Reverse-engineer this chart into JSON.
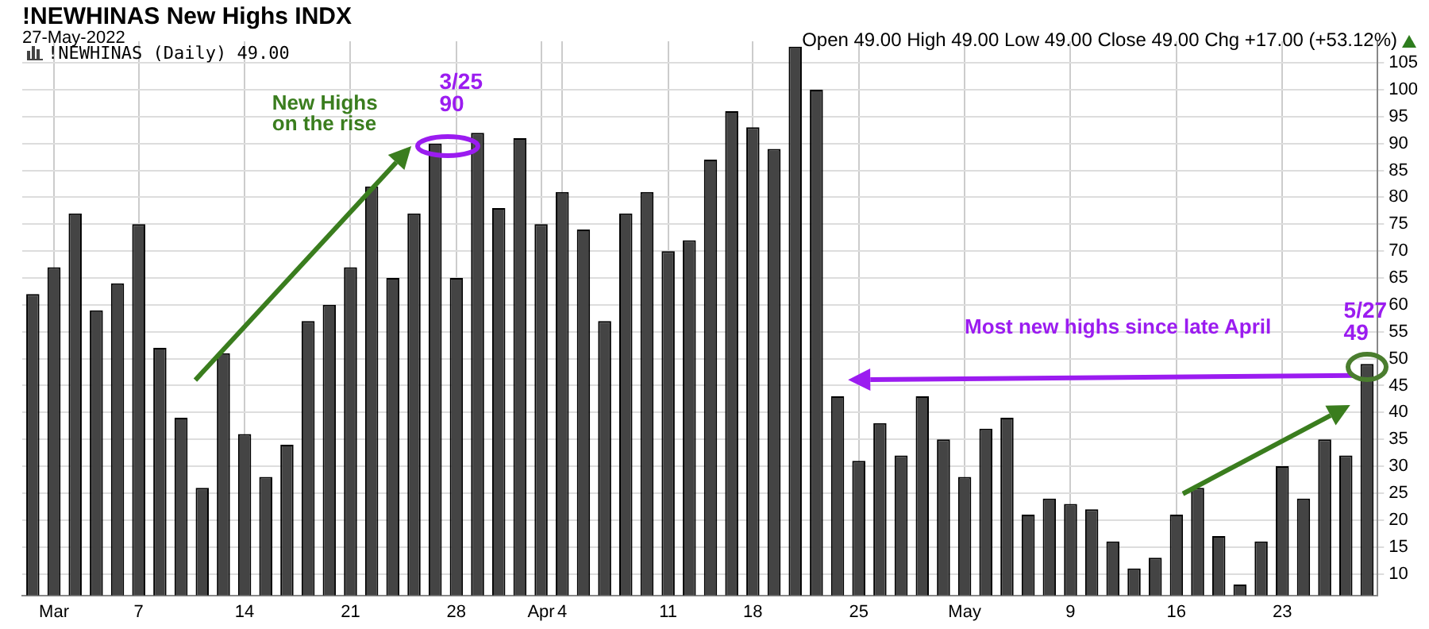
{
  "chart_data": {
    "type": "bar",
    "title": "!NEWHINAS New Highs INDX",
    "subtitle": "27-May-2022",
    "categories": [
      null,
      "Mar",
      null,
      null,
      null,
      "7",
      null,
      null,
      null,
      null,
      "14",
      null,
      null,
      null,
      null,
      "21",
      null,
      null,
      null,
      null,
      "28",
      null,
      null,
      null,
      "Apr",
      "4",
      null,
      null,
      null,
      null,
      "11",
      null,
      null,
      null,
      "18",
      null,
      null,
      null,
      null,
      "25",
      null,
      null,
      null,
      null,
      "May",
      null,
      null,
      null,
      null,
      "9",
      null,
      null,
      null,
      null,
      "16",
      null,
      null,
      null,
      null,
      "23",
      null,
      null,
      null,
      null
    ],
    "series": [
      {
        "name": "!NEWHINAS (Daily) 49.00",
        "color": "#444444",
        "values": [
          62,
          67,
          77,
          59,
          64,
          75,
          52,
          39,
          26,
          51,
          36,
          28,
          34,
          57,
          60,
          67,
          82,
          65,
          77,
          90,
          65,
          92,
          78,
          91,
          75,
          81,
          74,
          57,
          77,
          81,
          70,
          72,
          87,
          96,
          93,
          89,
          108,
          100,
          43,
          31,
          38,
          32,
          43,
          35,
          28,
          37,
          39,
          21,
          24,
          23,
          22,
          16,
          11,
          13,
          21,
          26,
          17,
          8,
          16,
          30,
          24,
          35,
          32,
          49
        ]
      }
    ],
    "ylim": [
      6,
      109
    ],
    "yticks": [
      10,
      15,
      20,
      25,
      30,
      35,
      40,
      45,
      50,
      55,
      60,
      65,
      70,
      75,
      80,
      85,
      90,
      95,
      100,
      105
    ],
    "grid": true,
    "legend": "top left",
    "annotations": [
      "Open 49.00 High 49.00 Low 49.00 Close 49.00 Chg +17.00 (+53.12%)",
      "New Highs\non the rise",
      "3/25\n90",
      "Most new highs since late April",
      "5/27\n49"
    ]
  }
}
